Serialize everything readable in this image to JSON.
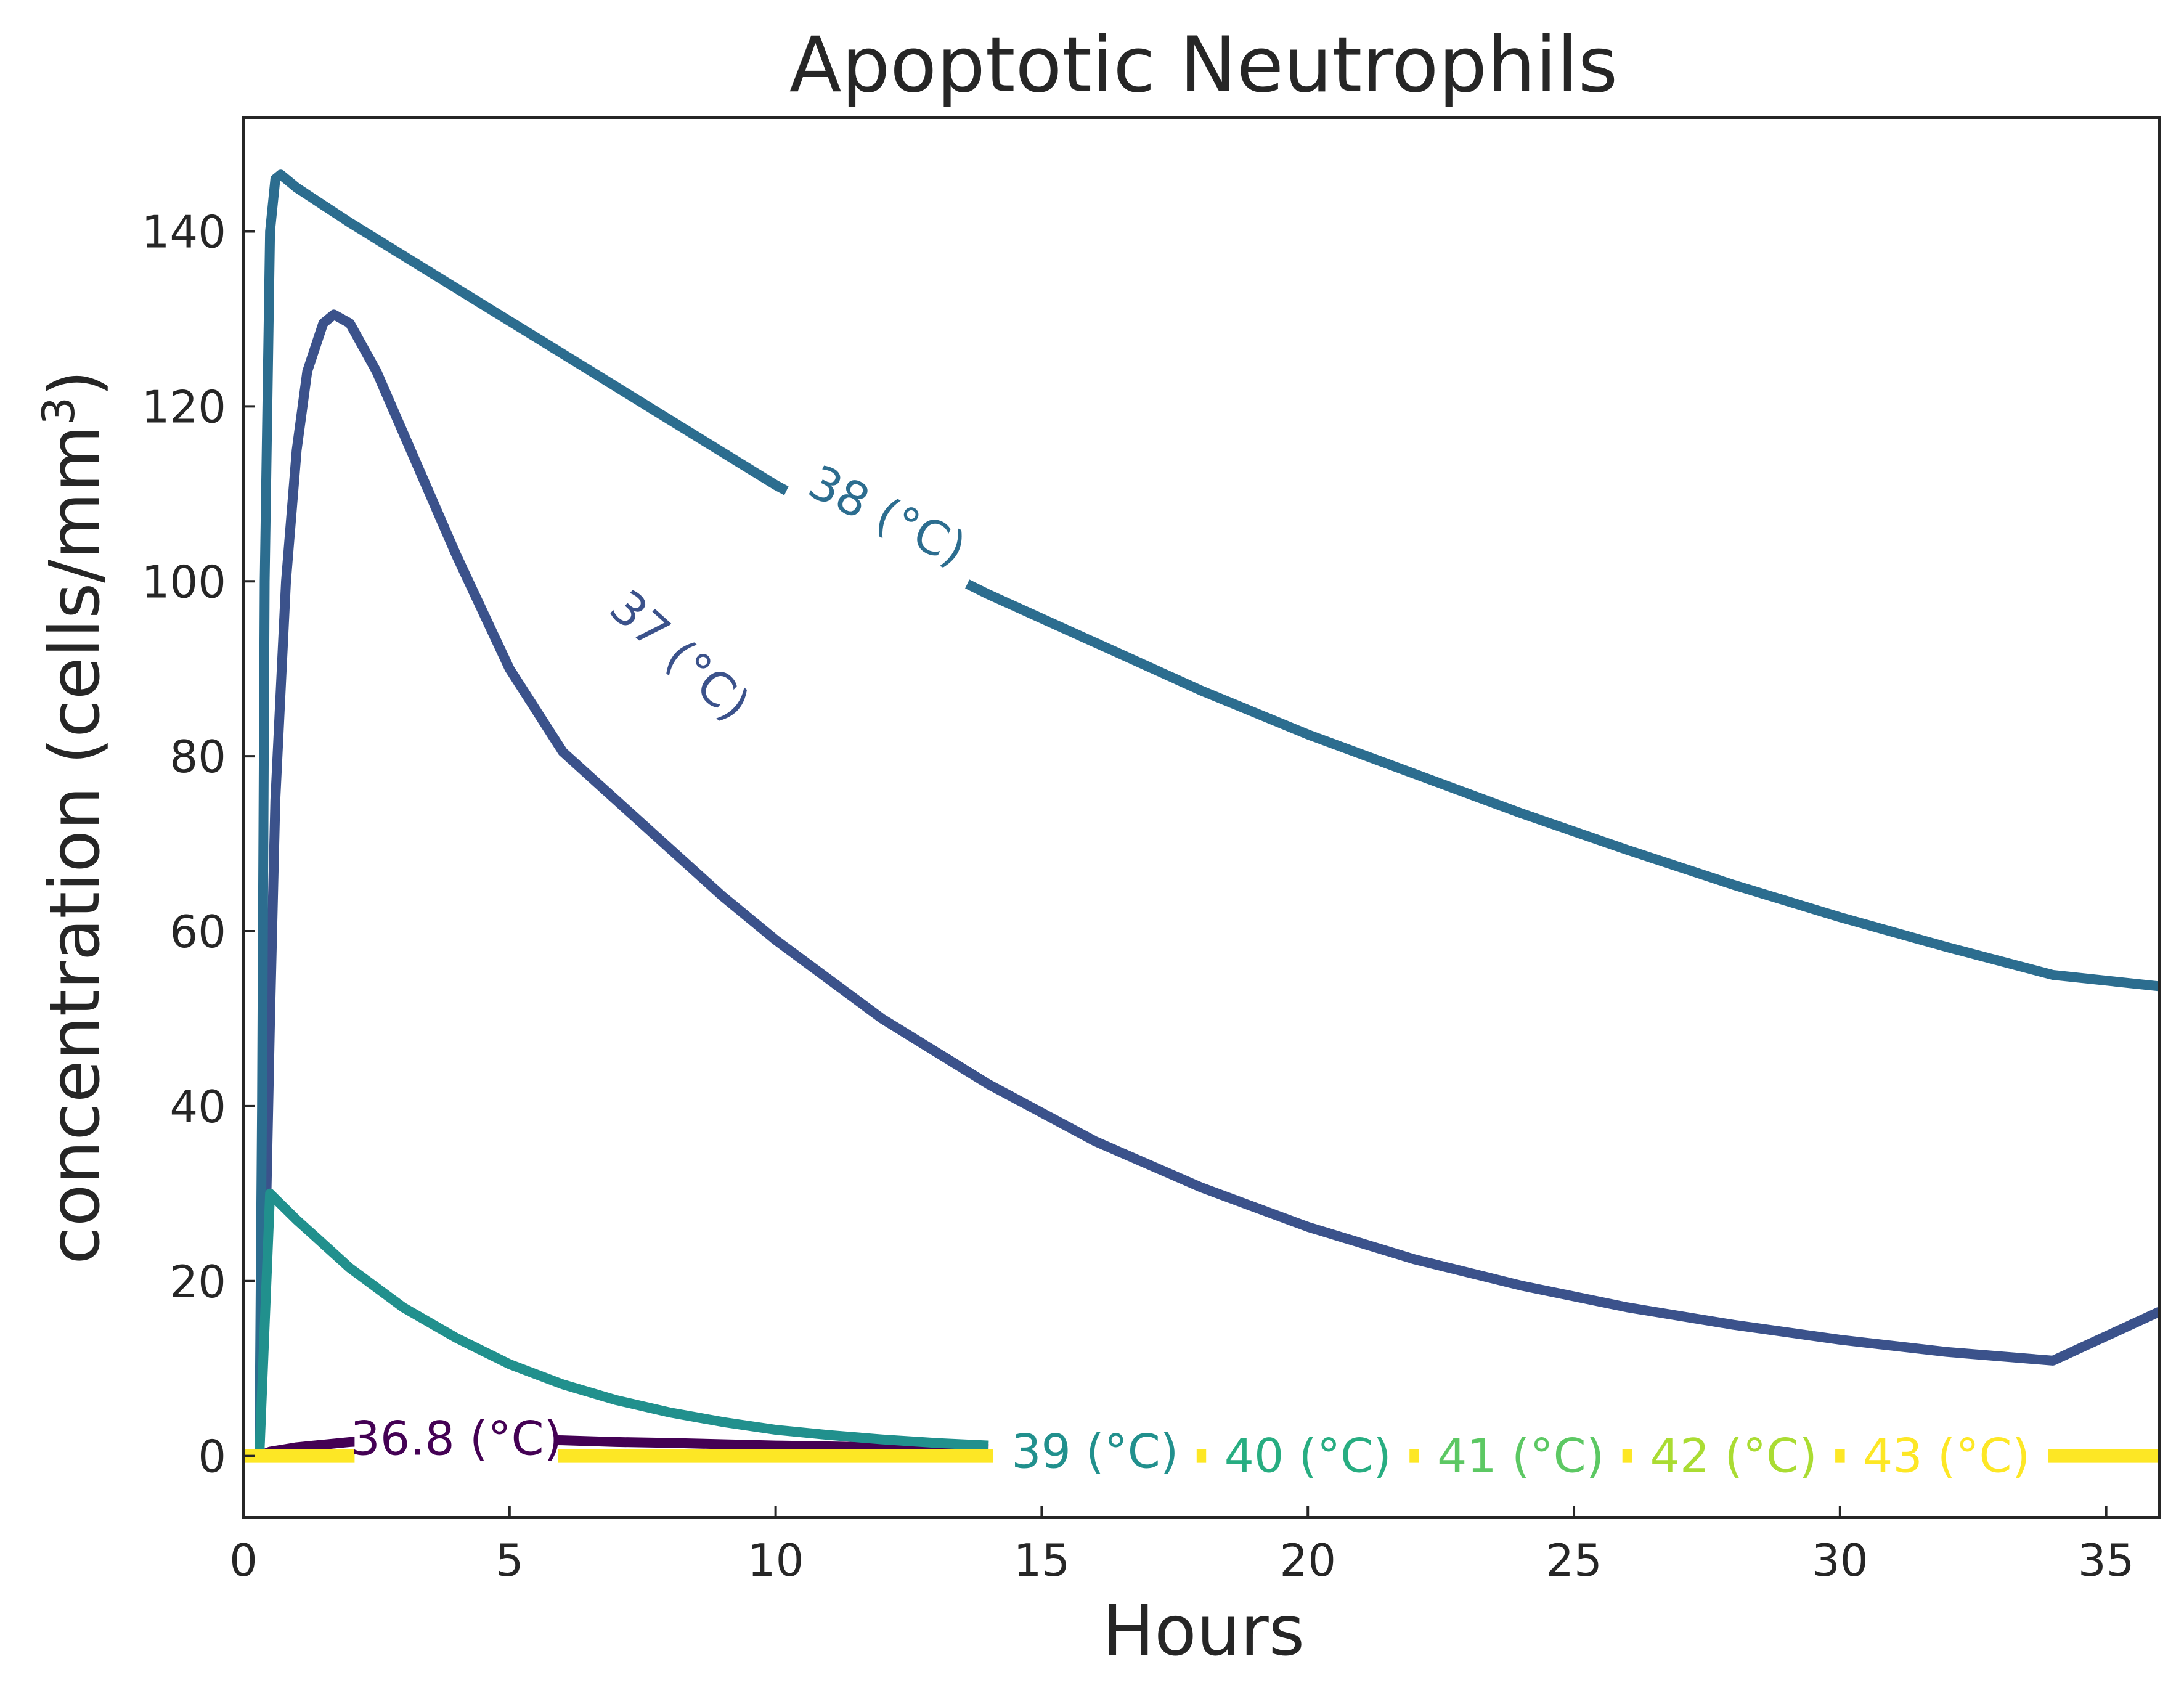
{
  "chart_data": {
    "type": "line",
    "title": "Apoptotic Neutrophils",
    "xlabel": "Hours",
    "ylabel": "concentration (cells/mm",
    "ylabel_superscript": "3",
    "ylabel_close": ")",
    "xlim": [
      0,
      36
    ],
    "ylim": [
      -7,
      153
    ],
    "xticks": [
      0,
      5,
      10,
      15,
      20,
      25,
      30,
      35
    ],
    "yticks": [
      0,
      20,
      40,
      60,
      80,
      100,
      120,
      140
    ],
    "grid": false,
    "legend": "none (inline curve labels)",
    "series": [
      {
        "name": "36.8 (°C)",
        "color": "#440154",
        "x": [
          0,
          0.3,
          0.5,
          1,
          2,
          3,
          4,
          5,
          6,
          7,
          8,
          10,
          12,
          14
        ],
        "y": [
          0,
          0,
          0.5,
          1.0,
          1.6,
          1.9,
          2.0,
          1.9,
          1.8,
          1.6,
          1.5,
          1.2,
          1.0,
          0.8
        ]
      },
      {
        "name": "37 (°C)",
        "color": "#3b528b",
        "x": [
          0,
          0.3,
          0.4,
          0.5,
          0.6,
          0.8,
          1.0,
          1.2,
          1.5,
          1.7,
          2.0,
          2.5,
          3,
          4,
          5,
          6,
          7,
          8,
          9,
          10,
          12,
          14,
          16,
          18,
          20,
          22,
          24,
          26,
          28,
          30,
          32,
          34,
          36
        ],
        "y": [
          0,
          0,
          20,
          50,
          75,
          100,
          115,
          124,
          129.5,
          130.5,
          129.5,
          124,
          117,
          103,
          90,
          80.5,
          75,
          69.5,
          64,
          59,
          50,
          42.5,
          36,
          30.7,
          26.2,
          22.5,
          19.5,
          17,
          15,
          13.3,
          11.9,
          10.9,
          16.5
        ]
      },
      {
        "name": "38 (°C)",
        "color": "#2c6d8f",
        "x": [
          0,
          0.3,
          0.35,
          0.4,
          0.5,
          0.6,
          0.7,
          1,
          2,
          4,
          6,
          8,
          10,
          12,
          14,
          16,
          18,
          20,
          22,
          24,
          26,
          28,
          30,
          32,
          34,
          36
        ],
        "y": [
          0,
          0,
          40,
          100,
          140,
          146,
          146.5,
          145,
          141,
          133.5,
          126,
          118.5,
          111,
          104.5,
          98.5,
          93,
          87.5,
          82.5,
          78,
          73.5,
          69.3,
          65.3,
          61.6,
          58.2,
          55,
          53.7
        ]
      },
      {
        "name": "39 (°C)",
        "color": "#21908d",
        "x": [
          0,
          0.3,
          0.4,
          0.5,
          1,
          2,
          3,
          4,
          5,
          6,
          7,
          8,
          9,
          10,
          11,
          12,
          13,
          14
        ],
        "y": [
          0,
          0,
          15,
          30,
          27,
          21.5,
          17,
          13.5,
          10.5,
          8.2,
          6.4,
          5.0,
          3.9,
          3.0,
          2.4,
          1.9,
          1.5,
          1.2
        ]
      },
      {
        "name": "40 (°C)",
        "color": "#27ad81",
        "x": [
          0,
          14
        ],
        "y": [
          0,
          0
        ]
      },
      {
        "name": "41 (°C)",
        "color": "#5cc863",
        "x": [
          0,
          14
        ],
        "y": [
          0,
          0
        ]
      },
      {
        "name": "42 (°C)",
        "color": "#aadc32",
        "x": [
          0,
          14
        ],
        "y": [
          0,
          0
        ]
      },
      {
        "name": "43 (°C)",
        "color": "#fde725",
        "x": [
          0,
          14,
          34.2,
          36
        ],
        "y": [
          0,
          0,
          0,
          0
        ]
      }
    ]
  }
}
